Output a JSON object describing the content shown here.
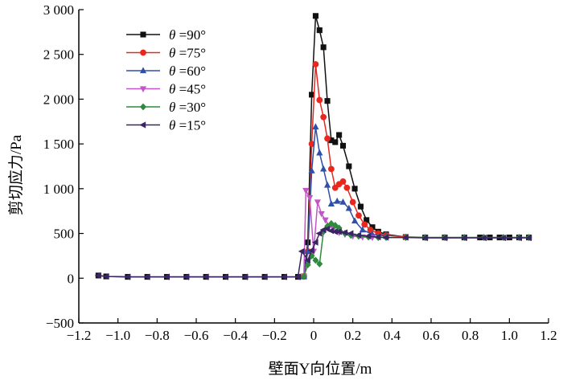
{
  "chart_data": {
    "type": "line",
    "title": "",
    "xlabel": "壁面Y向位置/m",
    "ylabel": "剪切应力/Pa",
    "xlim": [
      -1.2,
      1.2
    ],
    "ylim": [
      -500,
      3000
    ],
    "xticks": [
      -1.2,
      -1.0,
      -0.8,
      -0.6,
      -0.4,
      -0.2,
      0,
      0.2,
      0.4,
      0.6,
      0.8,
      1.0,
      1.2
    ],
    "xtick_labels": [
      "−1.2",
      "−1.0",
      "−0.8",
      "−0.6",
      "−0.4",
      "−0.2",
      "0",
      "0.2",
      "0.4",
      "0.6",
      "0.8",
      "1.0",
      "1.2"
    ],
    "yticks": [
      -500,
      0,
      500,
      1000,
      1500,
      2000,
      2500,
      3000
    ],
    "ytick_labels": [
      "−500",
      "0",
      "500",
      "1 000",
      "1 500",
      "2 000",
      "2 500",
      "3 000"
    ],
    "grid": false,
    "legend_position": "top-left",
    "legend_symbol": "θ",
    "series": [
      {
        "name": "=90°",
        "color": "#111111",
        "marker": "square",
        "x": [
          -1.1,
          -1.06,
          -0.95,
          -0.85,
          -0.75,
          -0.65,
          -0.55,
          -0.45,
          -0.35,
          -0.25,
          -0.15,
          -0.08,
          -0.05,
          -0.03,
          -0.01,
          0.01,
          0.03,
          0.05,
          0.07,
          0.09,
          0.11,
          0.13,
          0.15,
          0.18,
          0.21,
          0.24,
          0.27,
          0.3,
          0.33,
          0.37,
          0.47,
          0.57,
          0.67,
          0.77,
          0.85,
          0.9,
          0.95,
          1.0,
          1.05,
          1.1
        ],
        "y": [
          30,
          20,
          15,
          15,
          15,
          15,
          15,
          15,
          15,
          15,
          15,
          15,
          20,
          400,
          2050,
          2930,
          2770,
          2580,
          1980,
          1540,
          1520,
          1600,
          1480,
          1250,
          1000,
          800,
          650,
          570,
          520,
          490,
          460,
          455,
          455,
          455,
          455,
          455,
          455,
          455,
          455,
          455
        ]
      },
      {
        "name": "=75°",
        "color": "#e8281e",
        "marker": "circle",
        "x": [
          -0.05,
          -0.03,
          -0.01,
          0.01,
          0.03,
          0.05,
          0.07,
          0.09,
          0.11,
          0.13,
          0.15,
          0.17,
          0.2,
          0.23,
          0.26,
          0.29,
          0.33,
          0.37,
          0.47
        ],
        "y": [
          20,
          300,
          1500,
          2390,
          1990,
          1800,
          1560,
          1220,
          1010,
          1050,
          1080,
          1010,
          850,
          700,
          600,
          540,
          500,
          480,
          460
        ]
      },
      {
        "name": "=60°",
        "color": "#2f4fa8",
        "marker": "triangle-up",
        "x": [
          -0.05,
          -0.03,
          -0.01,
          0.01,
          0.03,
          0.05,
          0.07,
          0.09,
          0.12,
          0.15,
          0.18,
          0.21,
          0.25,
          0.3,
          0.37
        ],
        "y": [
          20,
          300,
          1200,
          1690,
          1400,
          1220,
          1040,
          830,
          860,
          850,
          780,
          640,
          540,
          490,
          470
        ]
      },
      {
        "name": "=45°",
        "color": "#c255c8",
        "marker": "triangle-down",
        "x": [
          -0.05,
          -0.04,
          -0.02,
          0.0,
          0.02,
          0.04,
          0.06,
          0.08,
          0.1,
          0.13,
          0.16,
          0.2,
          0.25,
          0.3
        ],
        "y": [
          20,
          980,
          900,
          300,
          850,
          720,
          650,
          580,
          560,
          510,
          490,
          470,
          460,
          455
        ]
      },
      {
        "name": "=30°",
        "color": "#2e8a3e",
        "marker": "diamond",
        "x": [
          -0.05,
          -0.03,
          -0.01,
          0.01,
          0.03,
          0.05,
          0.07,
          0.09,
          0.11,
          0.13,
          0.16,
          0.19,
          0.23,
          0.28,
          0.33,
          0.37,
          0.47,
          0.57,
          0.67,
          0.77,
          0.87,
          0.97,
          1.05,
          1.1
        ],
        "y": [
          20,
          150,
          250,
          200,
          160,
          520,
          580,
          610,
          590,
          560,
          500,
          480,
          470,
          460,
          455,
          455,
          455,
          455,
          455,
          455,
          455,
          455,
          455,
          455
        ]
      },
      {
        "name": "=15°",
        "color": "#3b2464",
        "marker": "left-triangle",
        "x": [
          -1.1,
          -1.06,
          -0.95,
          -0.85,
          -0.75,
          -0.65,
          -0.55,
          -0.45,
          -0.35,
          -0.25,
          -0.15,
          -0.08,
          -0.06,
          -0.03,
          -0.01,
          0.01,
          0.03,
          0.05,
          0.07,
          0.09,
          0.11,
          0.13,
          0.16,
          0.19,
          0.23,
          0.28,
          0.33,
          0.37,
          0.47,
          0.57,
          0.67,
          0.77,
          0.87,
          0.97,
          1.05,
          1.1
        ],
        "y": [
          30,
          20,
          15,
          15,
          15,
          15,
          15,
          15,
          15,
          15,
          15,
          15,
          300,
          200,
          310,
          400,
          500,
          540,
          550,
          530,
          520,
          520,
          510,
          500,
          480,
          470,
          460,
          455,
          455,
          450,
          450,
          450,
          450,
          450,
          450,
          450
        ]
      }
    ]
  }
}
